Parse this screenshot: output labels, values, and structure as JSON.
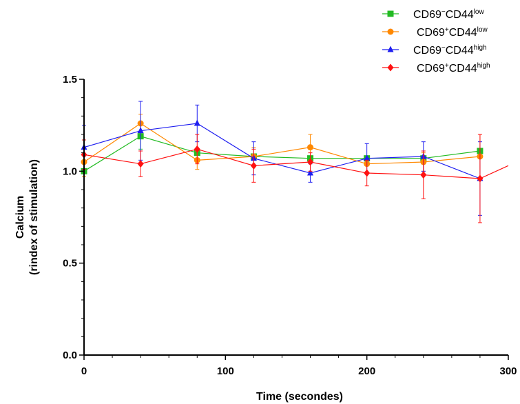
{
  "chart_data": {
    "type": "line",
    "xlabel": "Time (secondes)",
    "ylabel_line1": "Calcium",
    "ylabel_line2": "(rindex of stimulation)",
    "xlim": [
      0,
      300
    ],
    "ylim": [
      0,
      1.5
    ],
    "x_ticks": [
      0,
      100,
      200,
      300
    ],
    "x_tick_labels": [
      "0",
      "100",
      "200",
      "300"
    ],
    "y_ticks": [
      0.0,
      0.5,
      1.0,
      1.5
    ],
    "y_tick_labels": [
      "0.0",
      "0.5",
      "1.0",
      "1.5"
    ],
    "grid": false,
    "legend_position": "top-right",
    "x": [
      0,
      40,
      80,
      120,
      160,
      200,
      240,
      280
    ],
    "series": [
      {
        "name": "CD69⁻CD44low",
        "legend": {
          "a": "CD69",
          "a_sup": "−",
          "b": "CD44",
          "b_sup": "low"
        },
        "color": "#22bb22",
        "marker": "square",
        "values": [
          1.0,
          1.19,
          1.1,
          1.08,
          1.07,
          1.07,
          1.07,
          1.11
        ],
        "err": [
          0.0,
          0.07,
          0.0,
          0.0,
          0.0,
          0.0,
          0.0,
          0.0
        ]
      },
      {
        "name": "CD69⁺CD44low",
        "legend": {
          "a": "CD69",
          "a_sup": "+",
          "b": "CD44",
          "b_sup": "low"
        },
        "color": "#ff8800",
        "marker": "circle",
        "values": [
          1.05,
          1.26,
          1.06,
          1.08,
          1.13,
          1.04,
          1.05,
          1.08
        ],
        "err": [
          0.08,
          0.05,
          0.05,
          0.05,
          0.07,
          0.0,
          0.05,
          0.12
        ]
      },
      {
        "name": "CD69⁻CD44high",
        "legend": {
          "a": "CD69",
          "a_sup": "−",
          "b": "CD44",
          "b_sup": "high"
        },
        "color": "#1e1ef0",
        "marker": "triangle",
        "values": [
          1.13,
          1.22,
          1.26,
          1.07,
          0.99,
          1.07,
          1.08,
          0.96
        ],
        "err": [
          0.12,
          0.16,
          0.1,
          0.09,
          0.05,
          0.08,
          0.08,
          0.2
        ]
      },
      {
        "name": "CD69⁺CD44high",
        "legend": {
          "a": "CD69",
          "a_sup": "+",
          "b": "CD44",
          "b_sup": "high"
        },
        "color": "#ff1111",
        "marker": "diamond",
        "values": [
          1.09,
          1.04,
          1.12,
          1.03,
          1.05,
          0.99,
          0.98,
          0.96
        ],
        "err": [
          0.08,
          0.07,
          0.08,
          0.09,
          0.05,
          0.07,
          0.13,
          0.24
        ]
      }
    ]
  }
}
